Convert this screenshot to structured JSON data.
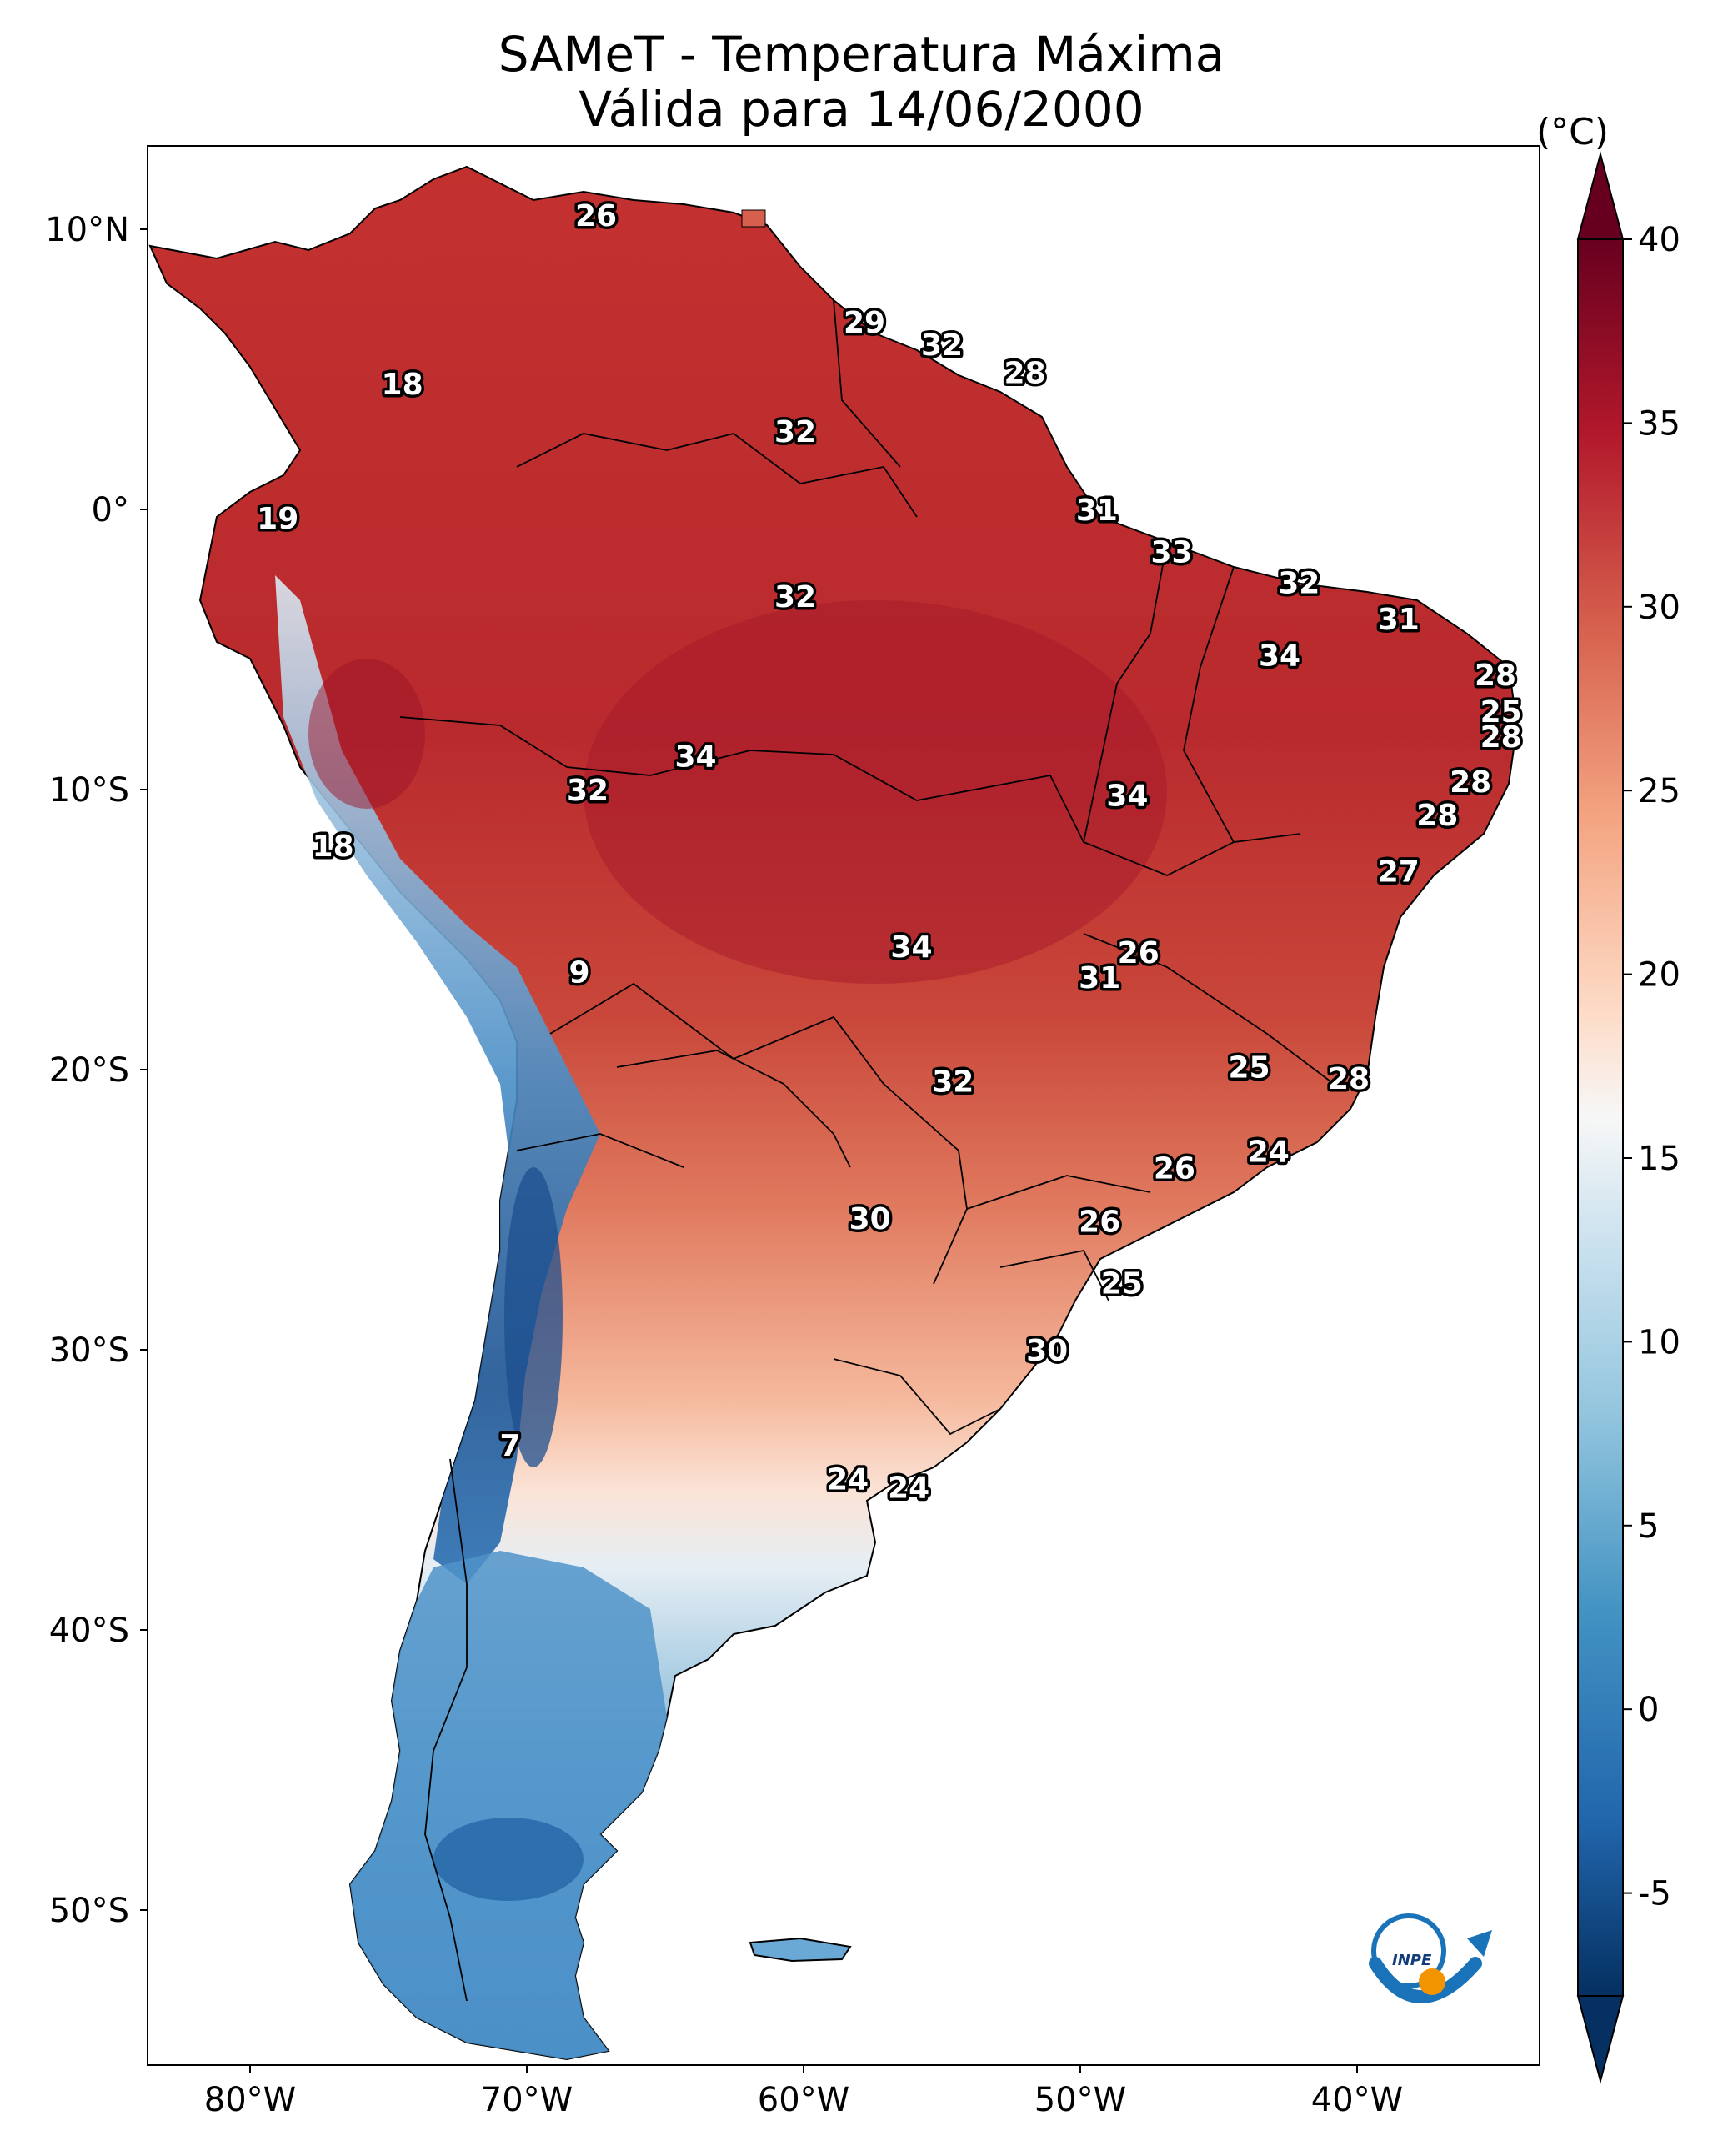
{
  "title": {
    "line1": "SAMeT - Temperatura Máxima",
    "line2": "Válida para 14/06/2000"
  },
  "colorbar": {
    "unit": "(°C)",
    "ticks": [
      "40",
      "35",
      "30",
      "25",
      "20",
      "15",
      "10",
      "5",
      "0",
      "-5"
    ],
    "min": -5,
    "max": 40,
    "colors": {
      "top": "#67001f",
      "high": "#b2182b",
      "mid_high": "#d6604d",
      "warm": "#f4a582",
      "light_warm": "#fddbc7",
      "neutral": "#f7f7f7",
      "light_cool": "#d1e5f0",
      "cool": "#92c5de",
      "mid_low": "#4393c3",
      "low": "#2166ac",
      "bottom": "#053061"
    }
  },
  "axes": {
    "lat_labels": [
      "10°N",
      "0°",
      "10°S",
      "20°S",
      "30°S",
      "40°S",
      "50°S"
    ],
    "lon_labels": [
      "80°W",
      "70°W",
      "60°W",
      "50°W",
      "40°W"
    ]
  },
  "temperature_labels": [
    {
      "value": "26",
      "lon": -67.5,
      "lat": 10.5
    },
    {
      "value": "18",
      "lon": -74.5,
      "lat": 4.5
    },
    {
      "value": "19",
      "lon": -79.0,
      "lat": -0.3
    },
    {
      "value": "29",
      "lon": -57.8,
      "lat": 6.7
    },
    {
      "value": "32",
      "lon": -55.0,
      "lat": 5.9
    },
    {
      "value": "28",
      "lon": -52.0,
      "lat": 4.9
    },
    {
      "value": "32",
      "lon": -60.3,
      "lat": 2.8
    },
    {
      "value": "31",
      "lon": -49.4,
      "lat": 0.0
    },
    {
      "value": "33",
      "lon": -46.7,
      "lat": -1.5
    },
    {
      "value": "32",
      "lon": -60.3,
      "lat": -3.1
    },
    {
      "value": "32",
      "lon": -42.1,
      "lat": -2.6
    },
    {
      "value": "31",
      "lon": -38.5,
      "lat": -3.9
    },
    {
      "value": "34",
      "lon": -42.8,
      "lat": -5.2
    },
    {
      "value": "28",
      "lon": -35.0,
      "lat": -5.9
    },
    {
      "value": "25",
      "lon": -34.8,
      "lat": -7.2
    },
    {
      "value": "28",
      "lon": -34.8,
      "lat": -8.1
    },
    {
      "value": "34",
      "lon": -63.9,
      "lat": -8.8
    },
    {
      "value": "32",
      "lon": -67.8,
      "lat": -10.0
    },
    {
      "value": "28",
      "lon": -35.9,
      "lat": -9.7
    },
    {
      "value": "34",
      "lon": -48.3,
      "lat": -10.2
    },
    {
      "value": "28",
      "lon": -37.1,
      "lat": -10.9
    },
    {
      "value": "18",
      "lon": -77.0,
      "lat": -12.0
    },
    {
      "value": "27",
      "lon": -38.5,
      "lat": -12.9
    },
    {
      "value": "34",
      "lon": -56.1,
      "lat": -15.6
    },
    {
      "value": "26",
      "lon": -47.9,
      "lat": -15.8
    },
    {
      "value": "31",
      "lon": -49.3,
      "lat": -16.7
    },
    {
      "value": "9",
      "lon": -68.1,
      "lat": -16.5
    },
    {
      "value": "25",
      "lon": -43.9,
      "lat": -19.9
    },
    {
      "value": "28",
      "lon": -40.3,
      "lat": -20.3
    },
    {
      "value": "32",
      "lon": -54.6,
      "lat": -20.4
    },
    {
      "value": "24",
      "lon": -43.2,
      "lat": -22.9
    },
    {
      "value": "26",
      "lon": -46.6,
      "lat": -23.5
    },
    {
      "value": "30",
      "lon": -57.6,
      "lat": -25.3
    },
    {
      "value": "26",
      "lon": -49.3,
      "lat": -25.4
    },
    {
      "value": "25",
      "lon": -48.5,
      "lat": -27.6
    },
    {
      "value": "30",
      "lon": -51.2,
      "lat": -30.0
    },
    {
      "value": "7",
      "lon": -70.6,
      "lat": -33.4
    },
    {
      "value": "24",
      "lon": -58.4,
      "lat": -34.6
    },
    {
      "value": "24",
      "lon": -56.2,
      "lat": -34.9
    }
  ]
}
